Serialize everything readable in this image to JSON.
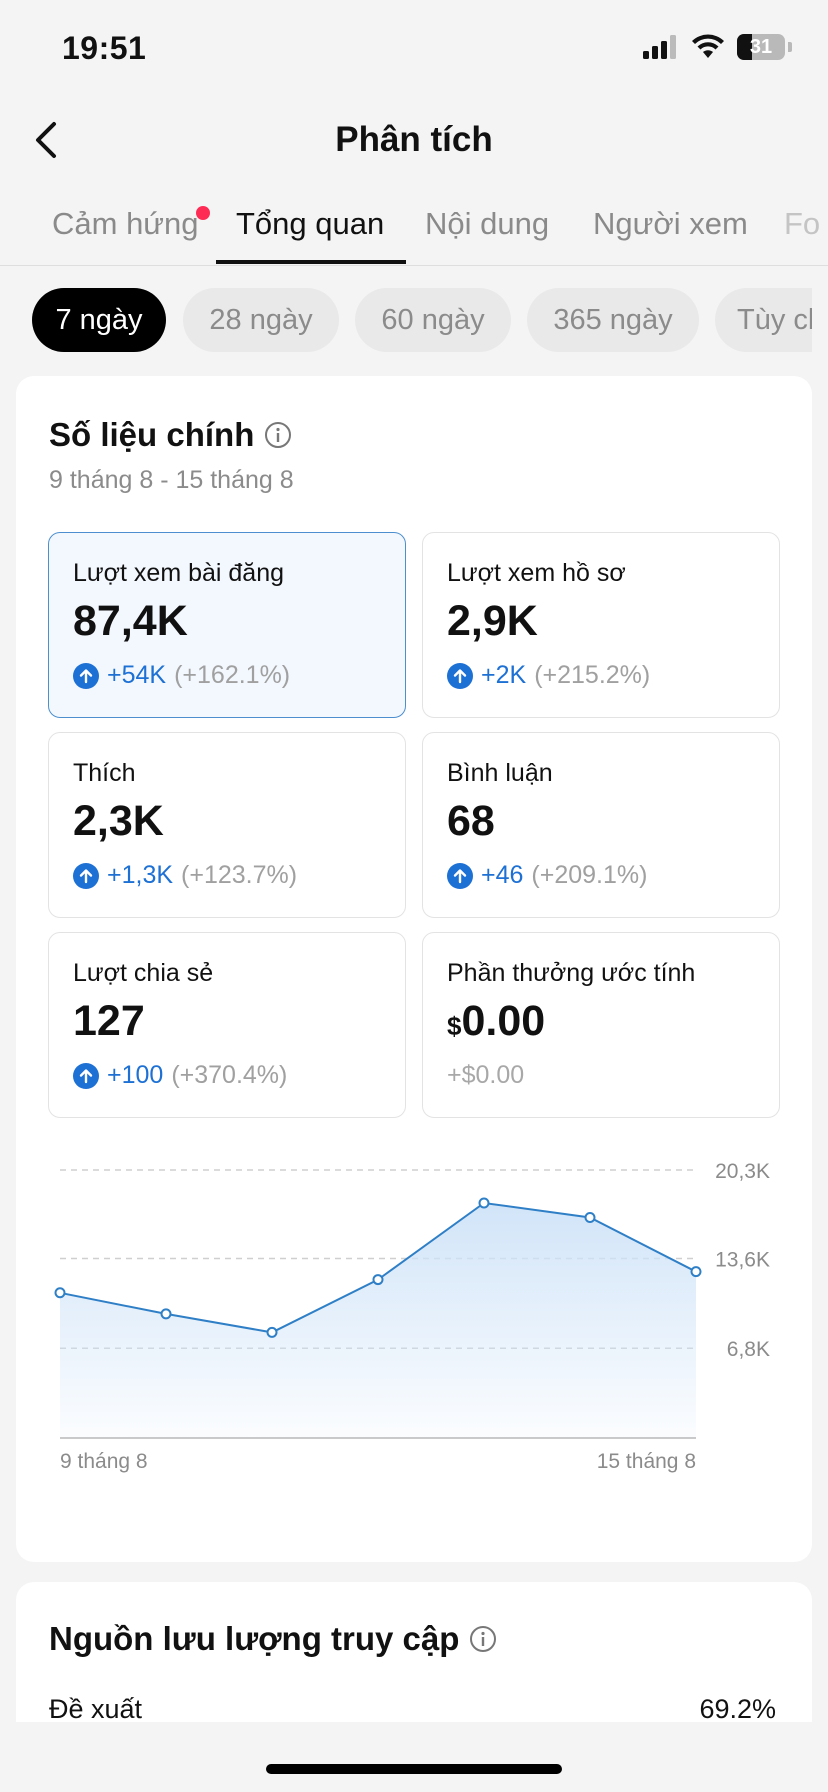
{
  "status_bar": {
    "time": "19:51",
    "battery_level": "31",
    "icons": [
      "signal-icon",
      "wifi-icon",
      "battery-icon"
    ]
  },
  "header": {
    "title": "Phân tích",
    "back_icon": "chevron-left-icon"
  },
  "tabs": [
    {
      "label": "Cảm hứng",
      "has_dot": true
    },
    {
      "label": "Tổng quan",
      "active": true
    },
    {
      "label": "Nội dung"
    },
    {
      "label": "Người xem"
    },
    {
      "label": "Fo"
    }
  ],
  "ranges": [
    {
      "label": "7 ngày",
      "active": true
    },
    {
      "label": "28 ngày"
    },
    {
      "label": "60 ngày"
    },
    {
      "label": "365 ngày"
    },
    {
      "label": "Tùy ch"
    }
  ],
  "key_metrics": {
    "title": "Số liệu chính",
    "date_range": "9 tháng 8 - 15 tháng 8",
    "items": [
      {
        "label": "Lượt xem bài đăng",
        "value": "87,4K",
        "delta": "+54K",
        "pct": "(+162.1%)"
      },
      {
        "label": "Lượt xem hồ sơ",
        "value": "2,9K",
        "delta": "+2K",
        "pct": "(+215.2%)"
      },
      {
        "label": "Thích",
        "value": "2,3K",
        "delta": "+1,3K",
        "pct": "(+123.7%)"
      },
      {
        "label": "Bình luận",
        "value": "68",
        "delta": "+46",
        "pct": "(+209.1%)"
      },
      {
        "label": "Lượt chia sẻ",
        "value": "127",
        "delta": "+100",
        "pct": "(+370.4%)"
      },
      {
        "label": "Phần thưởng ước tính",
        "currency": "$",
        "value": "0.00",
        "delta_text": "+$0.00"
      }
    ]
  },
  "chart_data": {
    "type": "area",
    "x_start_label": "9 tháng 8",
    "x_end_label": "15 tháng 8",
    "y_tick_labels": [
      "20,3K",
      "13,6K",
      "6,8K"
    ],
    "y_ticks": [
      20300,
      13600,
      6800
    ],
    "ylim": [
      0,
      20300
    ],
    "values": [
      11000,
      9400,
      8000,
      12000,
      17800,
      16700,
      12600
    ],
    "colors": {
      "line": "#2f7fc7",
      "fill": "#cfe3f8"
    }
  },
  "traffic": {
    "title": "Nguồn lưu lượng truy cập",
    "rows": [
      {
        "label": "Đề xuất",
        "value": "69.2%"
      }
    ]
  }
}
